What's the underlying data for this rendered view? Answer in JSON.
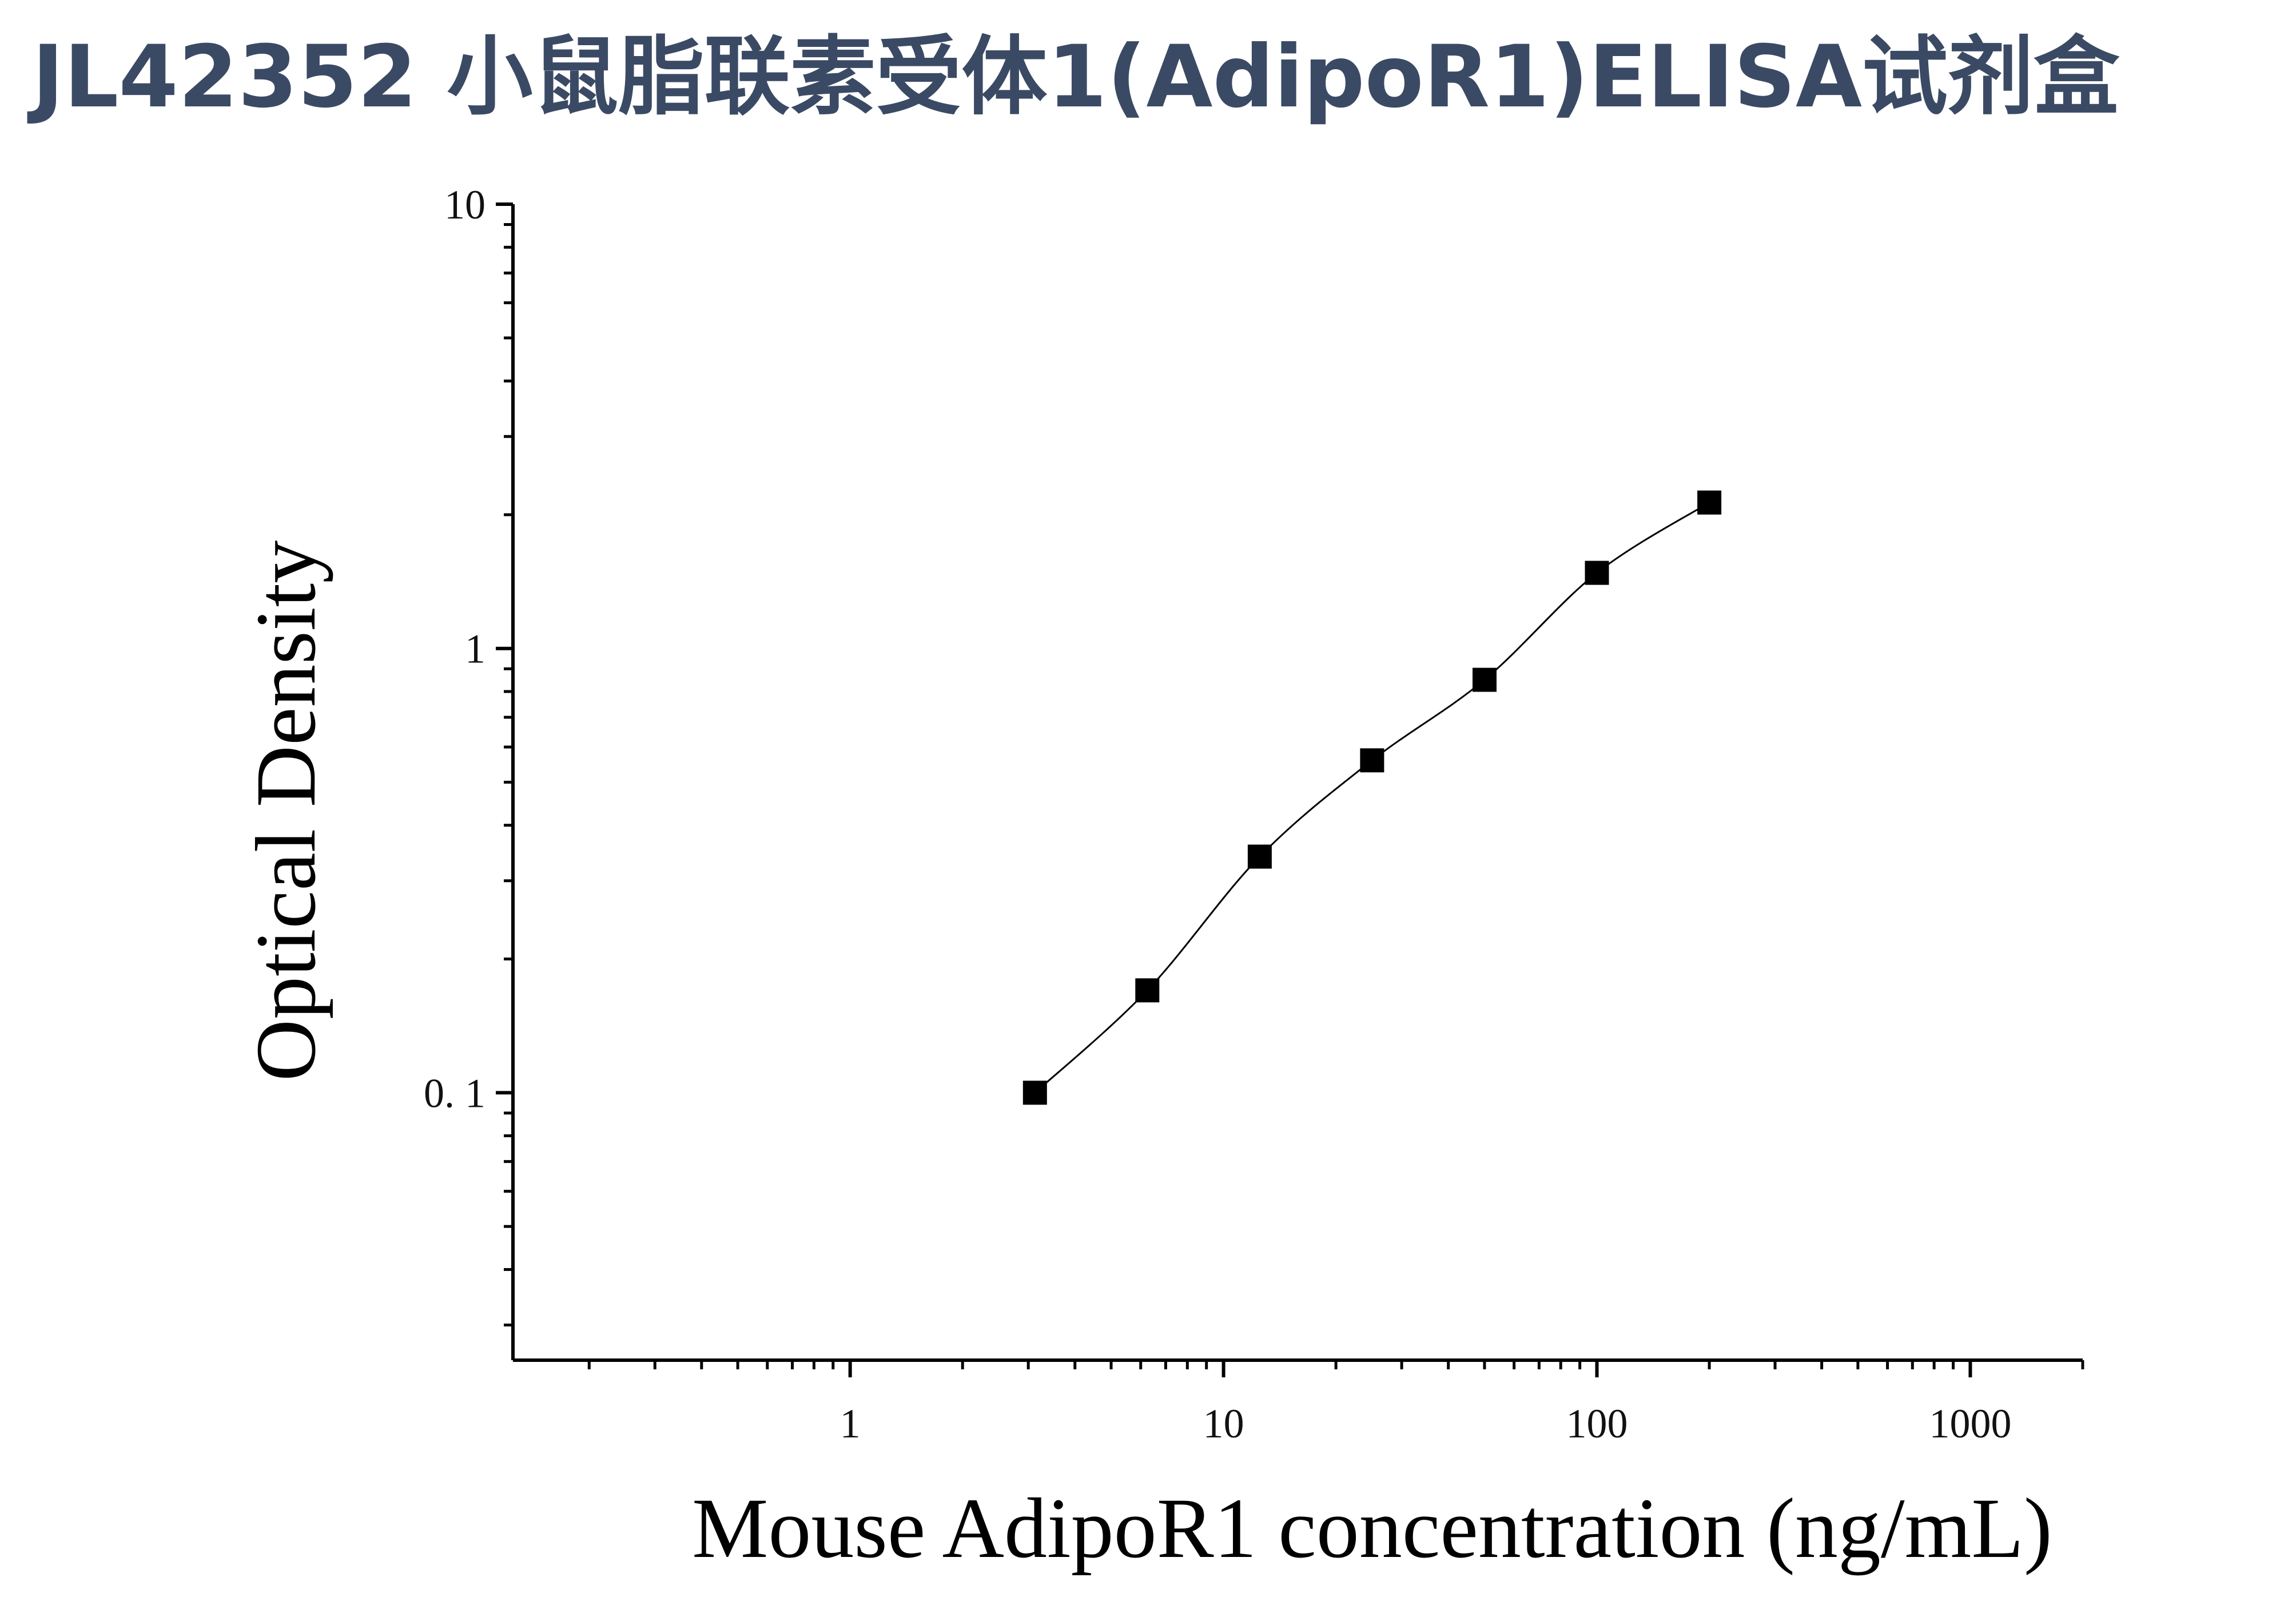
{
  "title": "JL42352 小鼠脂联素受体1(AdipoR1)ELISA试剂盒",
  "chart_data": {
    "type": "scatter",
    "title": "JL42352 小鼠脂联素受体1(AdipoR1)ELISA试剂盒",
    "xlabel": "Mouse AdipoR1 concentration (ng/mL)",
    "ylabel": "Optical Density",
    "xscale": "log",
    "yscale": "log",
    "xlim": [
      0.125,
      2000
    ],
    "ylim": [
      0.025,
      10
    ],
    "x_tick_labels": [
      "1",
      "10",
      "100",
      "1000"
    ],
    "x_tick_values": [
      1,
      10,
      100,
      1000
    ],
    "y_tick_labels": [
      "0. 1",
      "1",
      "10"
    ],
    "y_tick_values": [
      0.1,
      1,
      10
    ],
    "grid": false,
    "legend": "none",
    "marker": "filled-square",
    "fit_line": "smooth curve through points",
    "series": [
      {
        "x": [
          3.125,
          6.25,
          12.5,
          25,
          50,
          100,
          200
        ],
        "y": [
          0.1,
          0.17,
          0.34,
          0.56,
          0.85,
          1.48,
          2.13
        ]
      }
    ]
  }
}
